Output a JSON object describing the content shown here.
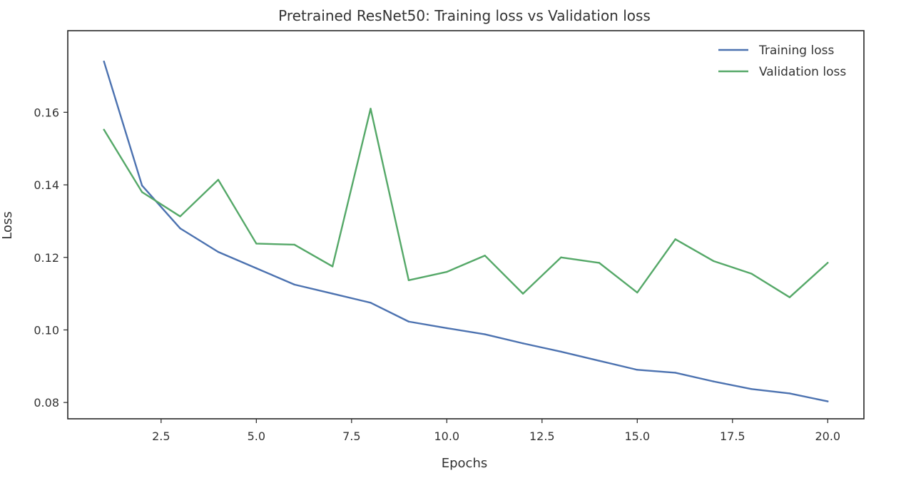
{
  "chart_data": {
    "type": "line",
    "title": "Pretrained ResNet50: Training loss vs Validation loss",
    "xlabel": "Epochs",
    "ylabel": "Loss",
    "xlim": [
      0.05,
      20.95
    ],
    "ylim": [
      0.0755,
      0.1825
    ],
    "x_ticks": [
      2.5,
      5.0,
      7.5,
      10.0,
      12.5,
      15.0,
      17.5,
      20.0
    ],
    "x_tick_labels": [
      "2.5",
      "5.0",
      "7.5",
      "10.0",
      "12.5",
      "15.0",
      "17.5",
      "20.0"
    ],
    "y_ticks": [
      0.08,
      0.1,
      0.12,
      0.14,
      0.16
    ],
    "y_tick_labels": [
      "0.08",
      "0.10",
      "0.12",
      "0.14",
      "0.16"
    ],
    "grid": false,
    "legend_position": "top-right",
    "x": [
      1,
      2,
      3,
      4,
      5,
      6,
      7,
      8,
      9,
      10,
      11,
      12,
      13,
      14,
      15,
      16,
      17,
      18,
      19,
      20
    ],
    "series": [
      {
        "name": "Training loss",
        "color": "#4c72b0",
        "values": [
          0.174,
          0.1398,
          0.128,
          0.1215,
          0.117,
          0.1125,
          0.11,
          0.1075,
          0.1023,
          0.1005,
          0.0988,
          0.0963,
          0.094,
          0.0915,
          0.089,
          0.0882,
          0.0858,
          0.0837,
          0.0825,
          0.0803
        ]
      },
      {
        "name": "Validation loss",
        "color": "#55a868",
        "values": [
          0.1552,
          0.138,
          0.1313,
          0.1414,
          0.1238,
          0.1235,
          0.1175,
          0.161,
          0.1137,
          0.116,
          0.1205,
          0.11,
          0.12,
          0.1185,
          0.1103,
          0.125,
          0.119,
          0.1155,
          0.109,
          0.1185
        ]
      }
    ]
  }
}
